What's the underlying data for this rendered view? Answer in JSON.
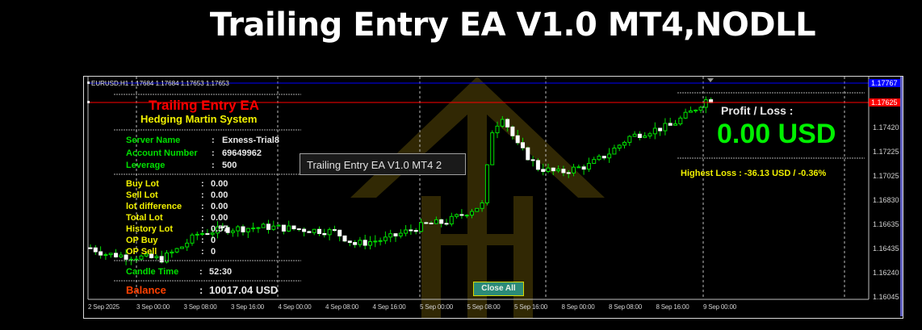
{
  "banner": {
    "title": "Trailing Entry EA V1.0 MT4,NODLL"
  },
  "chart": {
    "header": "EURUSD,H1  1.17684 1.17684 1.17653 1.17653",
    "symbol": "EURUSD",
    "timeframe": "H1",
    "price_labels": [
      "1.17420",
      "1.17225",
      "1.17025",
      "1.16830",
      "1.16635",
      "1.16435",
      "1.16240",
      "1.16045"
    ],
    "price_min": 1.16045,
    "price_max": 1.17767,
    "blue_line": {
      "price": "1.17767",
      "color": "#0000ff"
    },
    "red_line": {
      "price": "1.17625",
      "color": "#ff0000"
    },
    "time_labels": [
      "2 Sep 2025",
      "3 Sep 00:00",
      "3 Sep 08:00",
      "3 Sep 16:00",
      "4 Sep 00:00",
      "4 Sep 08:00",
      "4 Sep 16:00",
      "5 Sep 00:00",
      "5 Sep 08:00",
      "5 Sep 16:00",
      "8 Sep 00:00",
      "8 Sep 08:00",
      "8 Sep 16:00",
      "9 Sep 00:00"
    ],
    "price_path": [
      [
        0,
        1.1645
      ],
      [
        3,
        1.164
      ],
      [
        8,
        1.1638
      ],
      [
        14,
        1.1636
      ],
      [
        18,
        1.1646
      ],
      [
        21,
        1.1656
      ],
      [
        26,
        1.166
      ],
      [
        35,
        1.1662
      ],
      [
        48,
        1.1658
      ],
      [
        48,
        1.1658
      ],
      [
        52,
        1.1648
      ],
      [
        58,
        1.1652
      ],
      [
        62,
        1.1658
      ],
      [
        66,
        1.1664
      ],
      [
        70,
        1.1666
      ],
      [
        74,
        1.1674
      ],
      [
        77,
        1.168
      ],
      [
        79,
        1.174
      ],
      [
        81,
        1.1752
      ],
      [
        84,
        1.1728
      ],
      [
        88,
        1.171
      ],
      [
        92,
        1.1706
      ],
      [
        98,
        1.1712
      ],
      [
        102,
        1.1722
      ],
      [
        106,
        1.1735
      ],
      [
        110,
        1.174
      ],
      [
        114,
        1.1744
      ],
      [
        118,
        1.1755
      ],
      [
        121,
        1.1765
      ],
      [
        122,
        1.17653
      ]
    ],
    "colors": {
      "bull": "#00e000",
      "bear": "#ffffff",
      "background": "#000000"
    }
  },
  "left_panel": {
    "title": "Trailing Entry EA",
    "subtitle": "Hedging Martin System",
    "account": [
      {
        "label": "Server Name",
        "value": "Exness-Trial8"
      },
      {
        "label": "Account Number",
        "value": "69649962"
      },
      {
        "label": "Leverage",
        "value": "500"
      }
    ],
    "lots": [
      {
        "label": "Buy  Lot",
        "value": "0.00"
      },
      {
        "label": "Sell Lot",
        "value": "0.00"
      },
      {
        "label": "lot difference",
        "value": "0.00"
      },
      {
        "label": "Total Lot",
        "value": "0.00"
      },
      {
        "label": "History Lot",
        "value": "0.57"
      },
      {
        "label": "OP Buy",
        "value": "0"
      },
      {
        "label": "OP Sell",
        "value": "0"
      }
    ],
    "candle_time": {
      "label": "Candle Time",
      "value": "52:30"
    },
    "balance": {
      "label": "Balance",
      "value": "10017.04 USD"
    }
  },
  "right_panel": {
    "pl_label": "Profit / Loss :",
    "pl_value": "0.00 USD",
    "highest_loss": "Highest Loss  : -36.13 USD / -0.36%"
  },
  "tooltip": "Trailing Entry EA V1.0 MT4 2",
  "close_all_label": "Close All"
}
